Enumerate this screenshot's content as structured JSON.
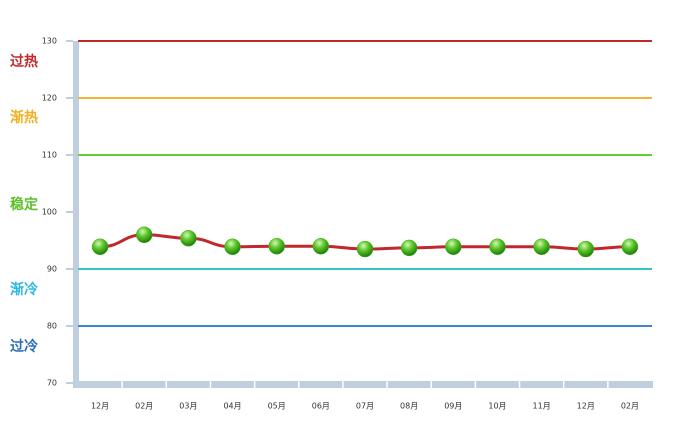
{
  "chart_data": {
    "type": "line",
    "categories": [
      "12月",
      "02月",
      "03月",
      "04月",
      "05月",
      "06月",
      "07月",
      "08月",
      "09月",
      "10月",
      "11月",
      "12月",
      "02月"
    ],
    "series": [
      {
        "color": "#c0282d",
        "marker_color": "#3fae1c",
        "values": [
          93.9,
          96.0,
          95.4,
          93.9,
          94.0,
          94.0,
          93.5,
          93.7,
          93.9,
          93.9,
          93.9,
          93.5,
          93.9
        ]
      }
    ],
    "ylim": [
      70,
      130
    ],
    "yticks": [
      70,
      80,
      90,
      100,
      110,
      120,
      130
    ],
    "reference_lines": [
      {
        "value": 130,
        "color": "#c0282d"
      },
      {
        "value": 120,
        "color": "#f5b335"
      },
      {
        "value": 110,
        "color": "#66cc33"
      },
      {
        "value": 90,
        "color": "#33c4c4"
      },
      {
        "value": 80,
        "color": "#3c87cc"
      }
    ],
    "zones": [
      {
        "text": "过热",
        "color": "#c0282d"
      },
      {
        "text": "渐热",
        "color": "#f0b020"
      },
      {
        "text": "稳定",
        "color": "#5cbf2a"
      },
      {
        "text": "渐冷",
        "color": "#2fb8e0"
      },
      {
        "text": "过冷",
        "color": "#2a6db5"
      }
    ]
  }
}
